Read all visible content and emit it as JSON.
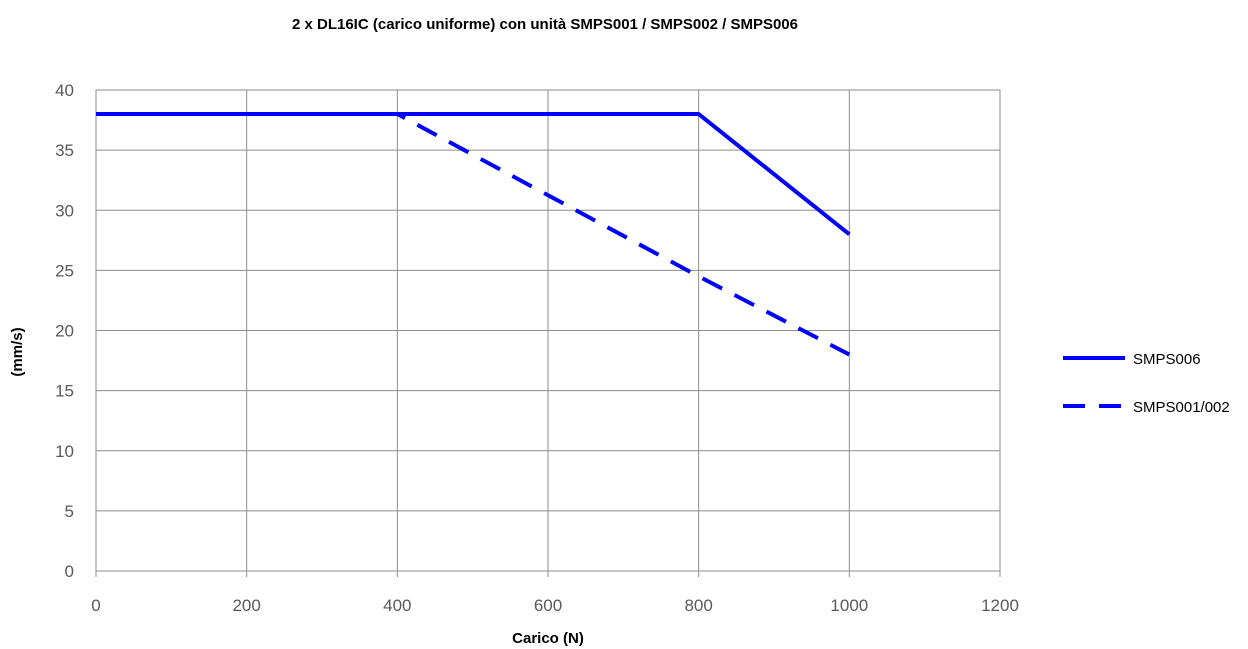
{
  "chart_data": {
    "type": "line",
    "title": "2 x DL16IC (carico uniforme) con unità SMPS001 / SMPS002 / SMPS006",
    "xlabel": "Carico (N)",
    "ylabel": "(mm/s)",
    "xlim": [
      0,
      1200
    ],
    "ylim": [
      0,
      40
    ],
    "xticks": [
      0,
      200,
      400,
      600,
      800,
      1000,
      1200
    ],
    "yticks": [
      0,
      5,
      10,
      15,
      20,
      25,
      30,
      35,
      40
    ],
    "grid": true,
    "legend_position": "right",
    "series": [
      {
        "name": "SMPS006",
        "color": "#0000ff",
        "dash": "solid",
        "x": [
          0,
          400,
          800,
          1000
        ],
        "y": [
          38,
          38,
          38,
          28
        ]
      },
      {
        "name": "SMPS001/002",
        "color": "#0000ff",
        "dash": "dashed",
        "x": [
          0,
          400,
          800,
          1000
        ],
        "y": [
          38,
          38,
          24.5,
          18
        ]
      }
    ]
  }
}
